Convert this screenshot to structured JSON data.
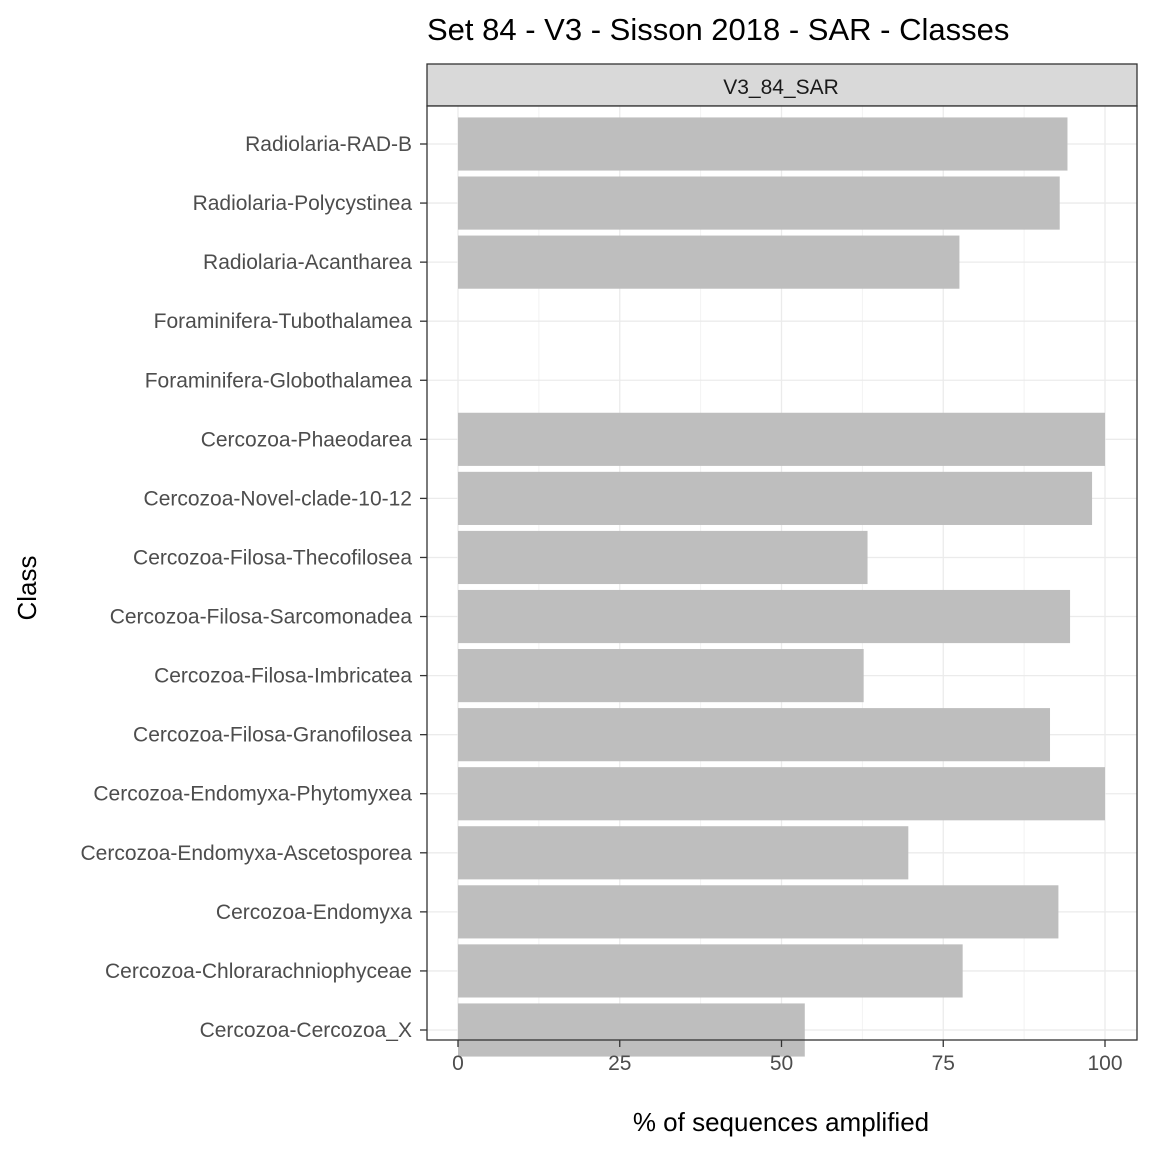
{
  "chart_data": {
    "type": "bar",
    "orientation": "horizontal",
    "title": "Set 84 - V3 - Sisson 2018 - SAR - Classes",
    "facet_label": "V3_84_SAR",
    "xlabel": "% of sequences amplified",
    "ylabel": "Class",
    "xlim": [
      0,
      100
    ],
    "x_ticks": [
      "0",
      "25",
      "50",
      "75",
      "100"
    ],
    "grid": true,
    "legend": "none",
    "bar_color": "#bebebe",
    "categories": [
      "Radiolaria-RAD-B",
      "Radiolaria-Polycystinea",
      "Radiolaria-Acantharea",
      "Foraminifera-Tubothalamea",
      "Foraminifera-Globothalamea",
      "Cercozoa-Phaeodarea",
      "Cercozoa-Novel-clade-10-12",
      "Cercozoa-Filosa-Thecofilosea",
      "Cercozoa-Filosa-Sarcomonadea",
      "Cercozoa-Filosa-Imbricatea",
      "Cercozoa-Filosa-Granofilosea",
      "Cercozoa-Endomyxa-Phytomyxea",
      "Cercozoa-Endomyxa-Ascetosporea",
      "Cercozoa-Endomyxa",
      "Cercozoa-Chlorarachniophyceae",
      "Cercozoa-Cercozoa_X"
    ],
    "values": [
      94.2,
      93.0,
      77.5,
      0,
      0,
      100,
      98.0,
      63.3,
      94.6,
      62.7,
      91.5,
      100,
      69.6,
      92.8,
      78.0,
      53.6
    ]
  }
}
